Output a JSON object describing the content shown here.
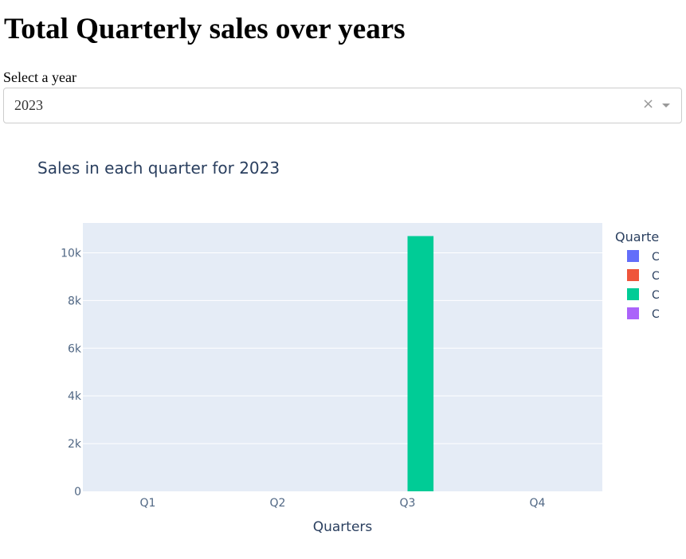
{
  "page": {
    "title": "Total Quarterly sales over years",
    "select_label": "Select a year"
  },
  "year_select": {
    "value": "2023",
    "clear_symbol": "×"
  },
  "chart_data": {
    "type": "bar",
    "title": "Sales in each quarter for 2023",
    "xlabel": "Quarters",
    "ylabel": "",
    "categories": [
      "Q1",
      "Q2",
      "Q3",
      "Q4"
    ],
    "yticks": [
      0,
      2000,
      4000,
      6000,
      8000,
      10000
    ],
    "ytick_labels": [
      "0",
      "2k",
      "4k",
      "6k",
      "8k",
      "10k"
    ],
    "ylim": [
      0,
      11250
    ],
    "legend": {
      "title": "Quarte",
      "placement": "right",
      "entries": [
        {
          "label": "C",
          "color": "#636efa"
        },
        {
          "label": "C",
          "color": "#ef553b"
        },
        {
          "label": "C",
          "color": "#00cc96"
        },
        {
          "label": "C",
          "color": "#ab63fa"
        }
      ]
    },
    "series": [
      {
        "category": "Q1",
        "value": 0,
        "color": "#636efa"
      },
      {
        "category": "Q2",
        "value": 0,
        "color": "#ef553b"
      },
      {
        "category": "Q3",
        "value": 10700,
        "color": "#00cc96"
      },
      {
        "category": "Q4",
        "value": 0,
        "color": "#ab63fa"
      }
    ],
    "colors": {
      "plot_bg": "#e5ecf6",
      "grid": "#ffffff",
      "text": "#2a3f5f",
      "tick_text": "#506784"
    }
  }
}
